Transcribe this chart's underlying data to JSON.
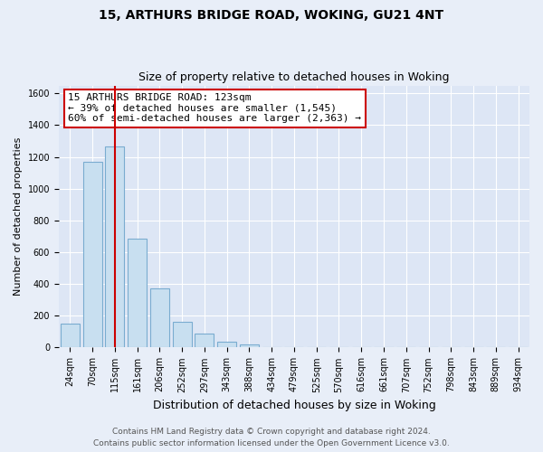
{
  "title": "15, ARTHURS BRIDGE ROAD, WOKING, GU21 4NT",
  "subtitle": "Size of property relative to detached houses in Woking",
  "xlabel": "Distribution of detached houses by size in Woking",
  "ylabel": "Number of detached properties",
  "bar_labels": [
    "24sqm",
    "70sqm",
    "115sqm",
    "161sqm",
    "206sqm",
    "252sqm",
    "297sqm",
    "343sqm",
    "388sqm",
    "434sqm",
    "479sqm",
    "525sqm",
    "570sqm",
    "616sqm",
    "661sqm",
    "707sqm",
    "752sqm",
    "798sqm",
    "843sqm",
    "889sqm",
    "934sqm"
  ],
  "bar_values": [
    150,
    1170,
    1265,
    685,
    375,
    160,
    90,
    35,
    20,
    0,
    0,
    0,
    0,
    0,
    0,
    0,
    0,
    0,
    0,
    0,
    0
  ],
  "bar_fill_color": "#c8dff0",
  "bar_edge_color": "#7aacd0",
  "vline_x": 2,
  "vline_color": "#cc0000",
  "ylim": [
    0,
    1650
  ],
  "yticks": [
    0,
    200,
    400,
    600,
    800,
    1000,
    1200,
    1400,
    1600
  ],
  "annotation_title": "15 ARTHURS BRIDGE ROAD: 123sqm",
  "annotation_line1": "← 39% of detached houses are smaller (1,545)",
  "annotation_line2": "60% of semi-detached houses are larger (2,363) →",
  "annotation_box_facecolor": "#ffffff",
  "annotation_box_edgecolor": "#cc0000",
  "footer_line1": "Contains HM Land Registry data © Crown copyright and database right 2024.",
  "footer_line2": "Contains public sector information licensed under the Open Government Licence v3.0.",
  "bg_color": "#e8eef8",
  "plot_bg_color": "#dde6f5",
  "grid_color": "#ffffff",
  "title_fontsize": 10,
  "subtitle_fontsize": 9,
  "ylabel_fontsize": 8,
  "xlabel_fontsize": 9,
  "tick_fontsize": 7,
  "footer_fontsize": 6.5,
  "footer_color": "#555555"
}
